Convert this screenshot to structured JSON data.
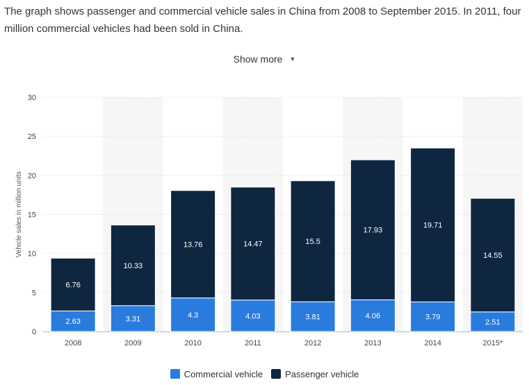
{
  "description": "The graph shows passenger and commercial vehicle sales in China from 2008 to September 2015. In 2011, four million commercial vehicles had been sold in China.",
  "show_more": {
    "label": "Show more",
    "icon": "triangle-down-icon"
  },
  "chart_data": {
    "type": "bar",
    "stacked": true,
    "categories": [
      "2008",
      "2009",
      "2010",
      "2011",
      "2012",
      "2013",
      "2014",
      "2015*"
    ],
    "series": [
      {
        "name": "Commercial vehicle",
        "color": "#2a7bde",
        "values": [
          2.63,
          3.31,
          4.3,
          4.03,
          3.81,
          4.06,
          3.79,
          2.51
        ],
        "labels": [
          "2.63",
          "3.31",
          "4.3",
          "4.03",
          "3.81",
          "4.06",
          "3.79",
          "2.51"
        ]
      },
      {
        "name": "Passenger vehicle",
        "color": "#0f2640",
        "values": [
          6.76,
          10.33,
          13.76,
          14.47,
          15.5,
          17.93,
          19.71,
          14.55
        ],
        "labels": [
          "6.76",
          "10.33",
          "13.76",
          "14.47",
          "15.5",
          "17.93",
          "19.71",
          "14.55"
        ]
      }
    ],
    "ylabel": "Vehicle sales in million units",
    "ylim": [
      0,
      30
    ],
    "yticks": [
      "0",
      "5",
      "10",
      "15",
      "20",
      "25",
      "30"
    ],
    "grid": true,
    "legend_position": "bottom"
  }
}
